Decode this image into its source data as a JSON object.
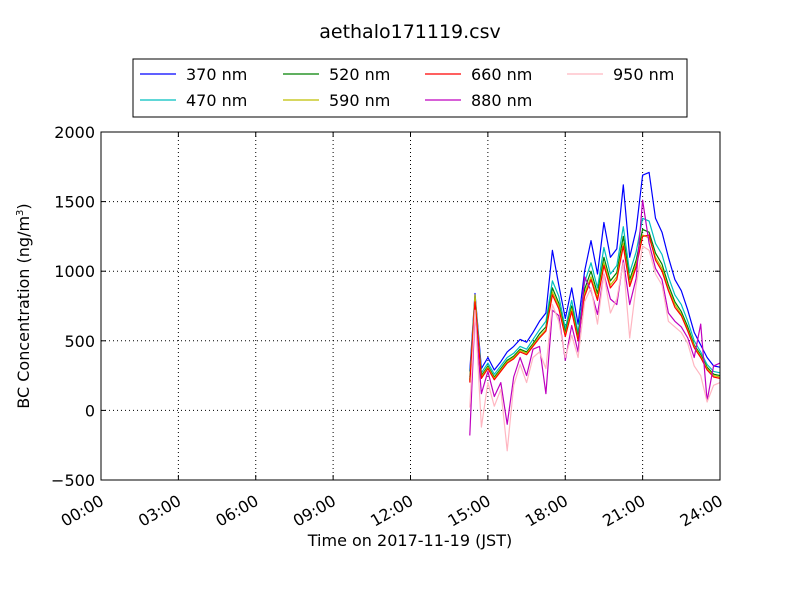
{
  "chart_data": {
    "type": "line",
    "title": "aethalo171119.csv",
    "xlabel": "Time on 2017-11-19 (JST)",
    "ylabel_main": "BC Concentration (ng/m",
    "ylabel_sup": "3",
    "ylabel_tail": ")",
    "xlim": [
      0,
      24
    ],
    "ylim": [
      -500,
      2000
    ],
    "grid": true,
    "legend_position": "top",
    "x_ticks": [
      {
        "value": 0,
        "label": "00:00"
      },
      {
        "value": 3,
        "label": "03:00"
      },
      {
        "value": 6,
        "label": "06:00"
      },
      {
        "value": 9,
        "label": "09:00"
      },
      {
        "value": 12,
        "label": "12:00"
      },
      {
        "value": 15,
        "label": "15:00"
      },
      {
        "value": 18,
        "label": "18:00"
      },
      {
        "value": 21,
        "label": "21:00"
      },
      {
        "value": 24,
        "label": "24:00"
      }
    ],
    "y_ticks": [
      {
        "value": -500,
        "label": "−500"
      },
      {
        "value": 0,
        "label": "0"
      },
      {
        "value": 500,
        "label": "500"
      },
      {
        "value": 1000,
        "label": "1000"
      },
      {
        "value": 1500,
        "label": "1500"
      },
      {
        "value": 2000,
        "label": "2000"
      }
    ],
    "x": [
      14.3,
      14.5,
      14.75,
      15.0,
      15.25,
      15.5,
      15.75,
      16.0,
      16.25,
      16.5,
      16.75,
      17.0,
      17.25,
      17.5,
      17.75,
      18.0,
      18.25,
      18.5,
      18.75,
      19.0,
      19.25,
      19.5,
      19.75,
      20.0,
      20.25,
      20.5,
      20.75,
      21.0,
      21.25,
      21.5,
      21.75,
      22.0,
      22.25,
      22.5,
      22.75,
      23.0,
      23.25,
      23.5,
      23.75,
      24.0
    ],
    "series": [
      {
        "name": "370 nm",
        "color": "#0000ff",
        "values": [
          280,
          840,
          300,
          380,
          290,
          350,
          420,
          460,
          510,
          490,
          560,
          640,
          700,
          1150,
          900,
          660,
          880,
          620,
          1000,
          1220,
          980,
          1350,
          1100,
          1160,
          1620,
          1100,
          1300,
          1690,
          1710,
          1380,
          1280,
          1100,
          940,
          860,
          720,
          560,
          470,
          380,
          320,
          310
        ]
      },
      {
        "name": "470 nm",
        "color": "#00bfbf",
        "values": [
          240,
          820,
          270,
          340,
          260,
          320,
          380,
          410,
          460,
          440,
          510,
          580,
          640,
          930,
          820,
          590,
          790,
          560,
          920,
          1060,
          880,
          1170,
          980,
          1040,
          1320,
          990,
          1140,
          1380,
          1360,
          1200,
          1120,
          960,
          830,
          760,
          640,
          500,
          420,
          330,
          280,
          270
        ]
      },
      {
        "name": "520 nm",
        "color": "#008000",
        "values": [
          220,
          800,
          250,
          320,
          240,
          300,
          360,
          390,
          440,
          420,
          480,
          550,
          600,
          880,
          770,
          560,
          750,
          530,
          870,
          1000,
          840,
          1100,
          930,
          990,
          1250,
          940,
          1080,
          1300,
          1280,
          1130,
          1050,
          900,
          780,
          710,
          600,
          470,
          400,
          310,
          260,
          250
        ]
      },
      {
        "name": "590 nm",
        "color": "#bfbf00",
        "values": [
          210,
          830,
          240,
          310,
          230,
          290,
          350,
          380,
          430,
          410,
          470,
          530,
          580,
          850,
          750,
          540,
          730,
          510,
          840,
          960,
          810,
          1060,
          900,
          960,
          1200,
          910,
          1050,
          1260,
          1240,
          1100,
          1020,
          870,
          760,
          690,
          580,
          460,
          390,
          300,
          250,
          240
        ]
      },
      {
        "name": "660 nm",
        "color": "#ff0000",
        "values": [
          200,
          780,
          230,
          300,
          220,
          280,
          340,
          370,
          420,
          400,
          460,
          520,
          570,
          830,
          730,
          530,
          710,
          500,
          820,
          940,
          790,
          1040,
          880,
          940,
          1180,
          890,
          1030,
          1250,
          1260,
          1080,
          1000,
          860,
          740,
          680,
          570,
          450,
          380,
          290,
          240,
          230
        ]
      },
      {
        "name": "880 nm",
        "color": "#bf00bf",
        "values": [
          -180,
          700,
          120,
          280,
          100,
          200,
          -100,
          240,
          380,
          250,
          440,
          460,
          120,
          720,
          680,
          360,
          610,
          420,
          960,
          860,
          690,
          980,
          800,
          760,
          1080,
          760,
          950,
          1510,
          1200,
          1020,
          940,
          700,
          640,
          600,
          520,
          380,
          620,
          70,
          320,
          340
        ]
      },
      {
        "name": "950 nm",
        "color": "#ffb6c1",
        "values": [
          20,
          720,
          -120,
          200,
          30,
          150,
          -290,
          180,
          330,
          200,
          380,
          420,
          300,
          760,
          640,
          380,
          540,
          380,
          780,
          880,
          620,
          980,
          700,
          800,
          1060,
          520,
          900,
          1180,
          1150,
          980,
          900,
          640,
          600,
          560,
          480,
          320,
          250,
          60,
          180,
          200
        ]
      }
    ]
  }
}
